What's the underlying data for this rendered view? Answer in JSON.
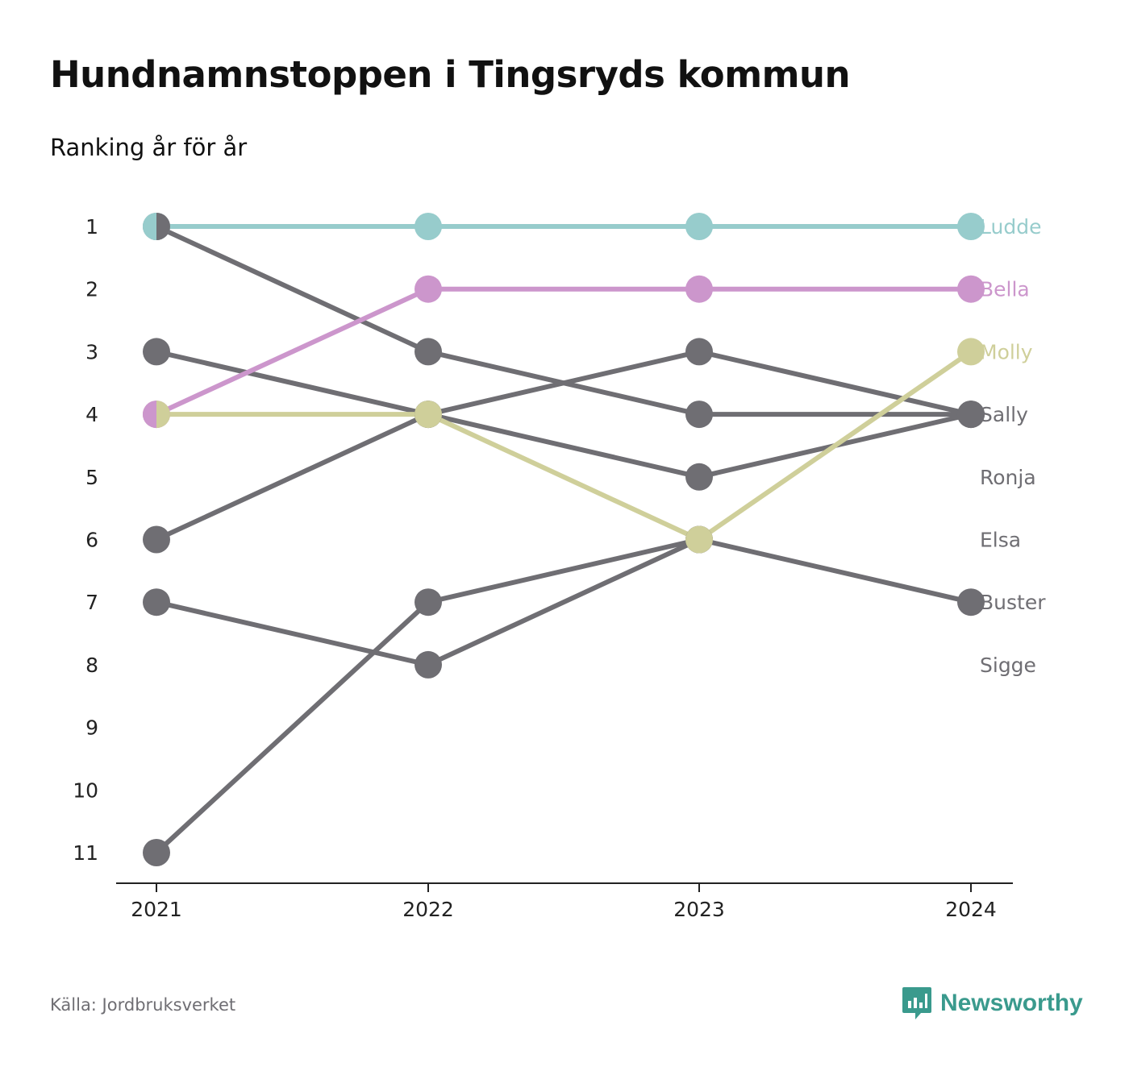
{
  "header": {
    "title": "Hundnamnstoppen i Tingsryds kommun",
    "subtitle": "Ranking år för år"
  },
  "footer": {
    "source": "Källa: Jordbruksverket",
    "brand": "Newsworthy"
  },
  "colors": {
    "ludde": "#97cccc",
    "bella": "#cc96cc",
    "molly": "#cfcf9a",
    "grey": "#6f6e73",
    "axis": "#222222",
    "brand": "#3a9a8d"
  },
  "chart_data": {
    "type": "line",
    "x": [
      "2021",
      "2022",
      "2023",
      "2024"
    ],
    "y_ticks": [
      "1",
      "2",
      "3",
      "4",
      "5",
      "6",
      "7",
      "8",
      "9",
      "10",
      "11"
    ],
    "ylim": [
      1,
      11
    ],
    "y_inverted": true,
    "series": [
      {
        "name": "Ludde",
        "values": [
          1,
          1,
          1,
          1
        ],
        "color": "#97cccc"
      },
      {
        "name": "Bella",
        "values": [
          4,
          2,
          2,
          2
        ],
        "color": "#cc96cc"
      },
      {
        "name": "Molly",
        "values": [
          4,
          4,
          6,
          3
        ],
        "color": "#cfcf9a"
      },
      {
        "name": "Sally",
        "values": [
          1,
          3,
          4,
          4
        ],
        "color": "#6f6e73"
      },
      {
        "name": "Ronja",
        "values": [
          3,
          4,
          5,
          4
        ],
        "color": "#6f6e73"
      },
      {
        "name": "Elsa",
        "values": [
          6,
          4,
          3,
          4
        ],
        "color": "#6f6e73"
      },
      {
        "name": "Buster",
        "values": [
          11,
          7,
          6,
          7
        ],
        "color": "#6f6e73"
      },
      {
        "name": "Sigge",
        "values": [
          7,
          8,
          6,
          null
        ],
        "color": "#6f6e73"
      }
    ]
  }
}
